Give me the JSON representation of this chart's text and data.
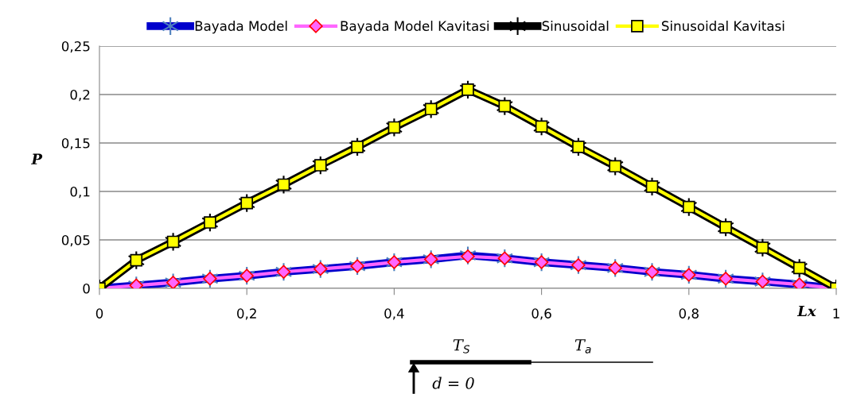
{
  "chart_data": {
    "type": "line",
    "x": [
      0,
      0.05,
      0.1,
      0.15,
      0.2,
      0.25,
      0.3,
      0.35,
      0.4,
      0.45,
      0.5,
      0.55,
      0.6,
      0.65,
      0.7,
      0.75,
      0.8,
      0.85,
      0.9,
      0.95,
      1
    ],
    "series": [
      {
        "name": "Bayada Model",
        "color": "#0000cc",
        "marker": "cross",
        "values": [
          0,
          0.003,
          0.006,
          0.01,
          0.013,
          0.017,
          0.02,
          0.023,
          0.027,
          0.03,
          0.034,
          0.031,
          0.027,
          0.024,
          0.021,
          0.017,
          0.014,
          0.01,
          0.007,
          0.004,
          0
        ]
      },
      {
        "name": "Bayada Model Kavitasi",
        "color": "#ff66ff",
        "marker": "diamond",
        "values": [
          0,
          0.003,
          0.006,
          0.01,
          0.013,
          0.017,
          0.02,
          0.023,
          0.027,
          0.03,
          0.033,
          0.031,
          0.027,
          0.024,
          0.021,
          0.017,
          0.014,
          0.01,
          0.007,
          0.004,
          0
        ]
      },
      {
        "name": "Sinusoidal",
        "color": "#000000",
        "marker": "cross",
        "values": [
          0,
          0.029,
          0.048,
          0.068,
          0.088,
          0.107,
          0.127,
          0.146,
          0.166,
          0.185,
          0.205,
          0.188,
          0.167,
          0.146,
          0.126,
          0.105,
          0.084,
          0.063,
          0.042,
          0.021,
          0
        ]
      },
      {
        "name": "Sinusoidal Kavitasi",
        "color": "#ffff00",
        "marker": "square",
        "values": [
          0,
          0.029,
          0.048,
          0.068,
          0.088,
          0.107,
          0.127,
          0.146,
          0.166,
          0.185,
          0.205,
          0.188,
          0.167,
          0.146,
          0.126,
          0.105,
          0.084,
          0.063,
          0.042,
          0.021,
          0
        ]
      }
    ],
    "xlabel": "Lx",
    "ylabel": "P",
    "xlim": [
      0,
      1
    ],
    "ylim": [
      0,
      0.25
    ],
    "xticks": [
      0,
      {
        "value": 0.2,
        "label": "0,2"
      },
      {
        "value": 0.4,
        "label": "0,4"
      },
      {
        "value": 0.6,
        "label": "0,6"
      },
      {
        "value": 0.8,
        "label": "0,8"
      },
      1
    ],
    "yticks": [
      0,
      {
        "value": 0.05,
        "label": "0,05"
      },
      {
        "value": 0.1,
        "label": "0,1"
      },
      {
        "value": 0.15,
        "label": "0,15"
      },
      {
        "value": 0.2,
        "label": "0,2"
      },
      {
        "value": 0.25,
        "label": "0,25"
      }
    ],
    "grid": "y",
    "legend": "top",
    "line_style": "solid",
    "annotations": [
      "T$_{S}$",
      "T$_{a}$",
      "d = 0"
    ]
  }
}
